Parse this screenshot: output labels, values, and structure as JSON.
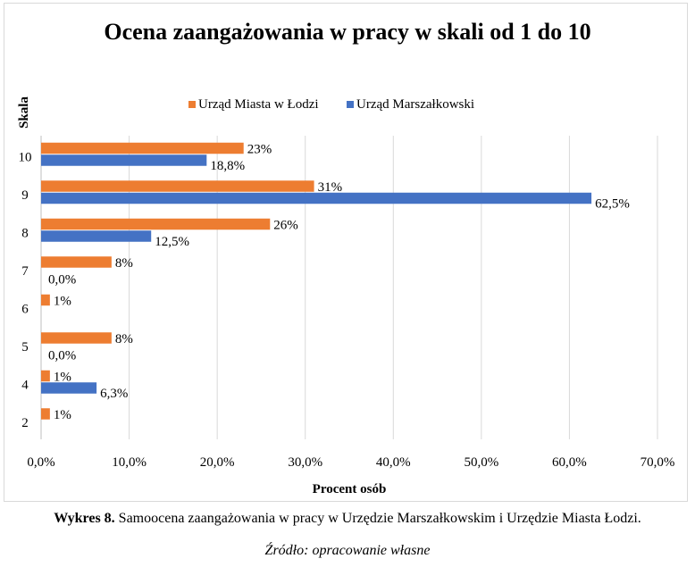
{
  "chart_data": {
    "type": "bar",
    "orientation": "horizontal",
    "title": "Ocena zaangażowania w pracy w skali od 1 do 10",
    "xlabel": "Procent osób",
    "ylabel": "Skala",
    "xlim": [
      0,
      70
    ],
    "x_ticks": [
      "0,0%",
      "10,0%",
      "20,0%",
      "30,0%",
      "40,0%",
      "50,0%",
      "60,0%",
      "70,0%"
    ],
    "grid": "vertical",
    "legend_position": "top",
    "categories": [
      "10",
      "9",
      "8",
      "7",
      "6",
      "5",
      "4",
      "2"
    ],
    "series": [
      {
        "name": "Urząd Miasta w Łodzi",
        "color": "#ED7D31",
        "values": [
          23,
          31,
          26,
          8,
          1,
          8,
          1,
          1
        ],
        "labels": [
          "23%",
          "31%",
          "26%",
          "8%",
          "1%",
          "8%",
          "1%",
          "1%"
        ]
      },
      {
        "name": "Urząd Marszałkowski",
        "color": "#4472C4",
        "values": [
          18.8,
          62.5,
          12.5,
          0,
          null,
          0,
          6.3,
          null
        ],
        "labels": [
          "18,8%",
          "62,5%",
          "12,5%",
          "0,0%",
          null,
          "0,0%",
          "6,3%",
          null
        ]
      }
    ]
  },
  "caption": {
    "prefix": "Wykres 8.",
    "text": " Samoocena zaangażowania w pracy w Urzędzie Marszałkowskim i Urzędzie Miasta Łodzi."
  },
  "source": "Źródło: opracowanie własne"
}
